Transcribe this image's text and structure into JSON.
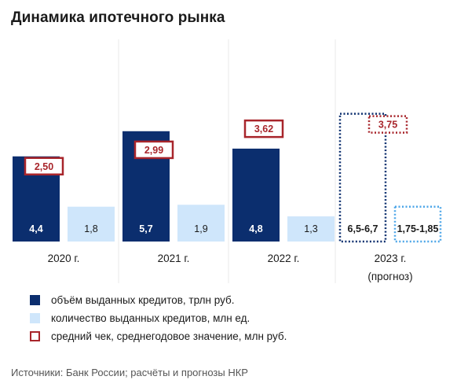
{
  "title": "Динамика ипотечного рынка",
  "colors": {
    "volume": "#0b2e6e",
    "count": "#cfe6fb",
    "avg_check": "#a8252b",
    "grid": "#e8e8e8",
    "forecast_volume": "#0b2e6e",
    "forecast_count": "#4da6e8"
  },
  "legend": {
    "volume": "объём выданных кредитов, трлн руб.",
    "count": "количество выданных кредитов, млн ед.",
    "avg_check": "средний чек, среднегодовое значение, млн руб."
  },
  "source": "Источники: Банк России; расчёты и прогнозы НКР",
  "chart_data": {
    "type": "bar",
    "categories": [
      "2020 г.",
      "2021 г.",
      "2022 г.",
      "2023 г."
    ],
    "category_notes": [
      "",
      "",
      "",
      "(прогноз)"
    ],
    "series": [
      {
        "name": "объём выданных кредитов, трлн руб.",
        "values": [
          4.4,
          5.7,
          4.8,
          6.6
        ],
        "labels": [
          "4,4",
          "5,7",
          "4,8",
          "6,5-6,7"
        ],
        "forecast": [
          false,
          false,
          false,
          true
        ]
      },
      {
        "name": "количество выданных кредитов, млн ед.",
        "values": [
          1.8,
          1.9,
          1.3,
          1.8
        ],
        "labels": [
          "1,8",
          "1,9",
          "1,3",
          "1,75-1,85"
        ],
        "forecast": [
          false,
          false,
          false,
          true
        ]
      },
      {
        "name": "средний чек, среднегодовое значение, млн руб.",
        "values": [
          2.5,
          2.99,
          3.62,
          3.75
        ],
        "labels": [
          "2,50",
          "2,99",
          "3,62",
          "3,75"
        ],
        "forecast": [
          false,
          false,
          false,
          true
        ]
      }
    ],
    "ylim": [
      0,
      7
    ],
    "legend_position": "bottom-left",
    "grid": true
  }
}
